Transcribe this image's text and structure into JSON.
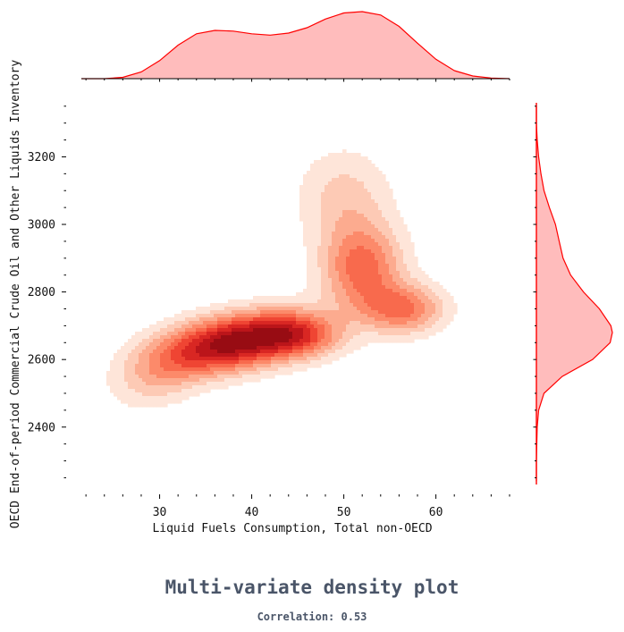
{
  "chart_data": {
    "type": "kde_joint",
    "title": "Multi-variate density plot",
    "subtitle": "Correlation: 0.53",
    "xlabel": "Liquid Fuels Consumption, Total non-OECD",
    "ylabel": "OECD End-of-period Commercial Crude Oil and Other Liquids Inventory",
    "xlim": [
      21.5,
      68
    ],
    "ylim": [
      2230,
      3360
    ],
    "x_ticks": [
      30,
      40,
      50,
      60
    ],
    "y_ticks": [
      2400,
      2600,
      2800,
      3000,
      3200
    ],
    "correlation": 0.53,
    "fill_levels": [
      "#fee5d9",
      "#fdcab5",
      "#fcab8f",
      "#fc8a6a",
      "#f86a4d",
      "#ef4533",
      "#d92723",
      "#bb151a",
      "#980c13"
    ],
    "marginal_color": "#ff0000",
    "marginal_fill": "#ffbcbc",
    "density_components": [
      {
        "mx": 38,
        "my": 2650,
        "sx": 5.2,
        "sy": 60,
        "rho": 0.35,
        "w": 1.0
      },
      {
        "mx": 45,
        "my": 2670,
        "sx": 3.2,
        "sy": 45,
        "rho": 0.0,
        "w": 0.5
      },
      {
        "mx": 52,
        "my": 2870,
        "sx": 3.0,
        "sy": 90,
        "rho": 0.0,
        "w": 0.55
      },
      {
        "mx": 56.5,
        "my": 2750,
        "sx": 3.0,
        "sy": 50,
        "rho": 0.0,
        "w": 0.5
      },
      {
        "mx": 50,
        "my": 3080,
        "sx": 3.5,
        "sy": 100,
        "rho": 0.0,
        "w": 0.22
      },
      {
        "mx": 30,
        "my": 2560,
        "sx": 3.5,
        "sy": 70,
        "rho": 0.3,
        "w": 0.25
      }
    ],
    "marginal_x": {
      "x": [
        21.5,
        24,
        26,
        28,
        30,
        32,
        34,
        36,
        38,
        40,
        42,
        44,
        46,
        48,
        50,
        52,
        54,
        56,
        58,
        60,
        62,
        64,
        66,
        68
      ],
      "density": [
        0.0,
        0.0,
        0.02,
        0.1,
        0.27,
        0.5,
        0.67,
        0.72,
        0.71,
        0.67,
        0.65,
        0.68,
        0.76,
        0.89,
        0.98,
        1.0,
        0.95,
        0.78,
        0.53,
        0.29,
        0.12,
        0.04,
        0.01,
        0.0
      ]
    },
    "marginal_y": {
      "y": [
        2240,
        2300,
        2400,
        2450,
        2500,
        2550,
        2600,
        2650,
        2680,
        2700,
        2750,
        2800,
        2850,
        2900,
        2950,
        3000,
        3050,
        3100,
        3150,
        3200,
        3250,
        3300,
        3350
      ],
      "density": [
        0.0,
        0.0,
        0.01,
        0.03,
        0.1,
        0.34,
        0.74,
        0.97,
        1.0,
        0.98,
        0.83,
        0.62,
        0.45,
        0.35,
        0.3,
        0.25,
        0.17,
        0.1,
        0.06,
        0.03,
        0.01,
        0.0,
        0.0
      ]
    }
  }
}
